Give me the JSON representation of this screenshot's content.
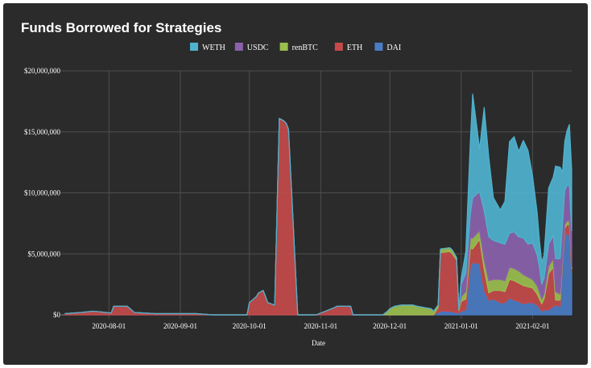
{
  "chart_data": {
    "type": "area",
    "stacked": true,
    "title": "Funds Borrowed for Strategies",
    "xlabel": "Date",
    "ylabel": "",
    "ylim": [
      0,
      20000000
    ],
    "yticks": [
      {
        "value": 0,
        "label": "$0"
      },
      {
        "value": 5000000,
        "label": "$5,000,000"
      },
      {
        "value": 10000000,
        "label": "$10,000,000"
      },
      {
        "value": 15000000,
        "label": "$15,000,000"
      },
      {
        "value": 20000000,
        "label": "$20,000,000"
      }
    ],
    "xlim": [
      "2020-07-13",
      "2021-02-18"
    ],
    "xticks": [
      "2020-08-01",
      "2020-09-01",
      "2020-10-01",
      "2020-11-01",
      "2020-12-01",
      "2021-01-01",
      "2021-02-01"
    ],
    "legend_position": "top-center",
    "grid": true,
    "colors": {
      "WETH": "#4fb3cf",
      "USDC": "#8a62ac",
      "renBTC": "#9bbe4f",
      "ETH": "#c44a4a",
      "DAI": "#4a7cc4"
    },
    "x": [
      "2020-07-13",
      "2020-07-20",
      "2020-07-25",
      "2020-07-28",
      "2020-08-02",
      "2020-08-03",
      "2020-08-08",
      "2020-08-09",
      "2020-08-12",
      "2020-08-21",
      "2020-09-07",
      "2020-09-08",
      "2020-09-15",
      "2020-09-16",
      "2020-09-30",
      "2020-10-01",
      "2020-10-04",
      "2020-10-05",
      "2020-10-07",
      "2020-10-09",
      "2020-10-12",
      "2020-10-14",
      "2020-10-16",
      "2020-10-17",
      "2020-10-18",
      "2020-10-22",
      "2020-10-23",
      "2020-10-24",
      "2020-10-25",
      "2020-10-26",
      "2020-10-27",
      "2020-10-28",
      "2020-10-29",
      "2020-10-30",
      "2020-11-07",
      "2020-11-08",
      "2020-11-14",
      "2020-11-15",
      "2020-11-28",
      "2020-11-30",
      "2020-12-01",
      "2020-12-03",
      "2020-12-06",
      "2020-12-08",
      "2020-12-11",
      "2020-12-13",
      "2020-12-16",
      "2020-12-19",
      "2020-12-20",
      "2020-12-22",
      "2020-12-23",
      "2020-12-27",
      "2020-12-28",
      "2020-12-30",
      "2020-12-31",
      "2021-01-01",
      "2021-01-03",
      "2021-01-05",
      "2021-01-06",
      "2021-01-09",
      "2021-01-11",
      "2021-01-13",
      "2021-01-15",
      "2021-01-18",
      "2021-01-20",
      "2021-01-22",
      "2021-01-24",
      "2021-01-26",
      "2021-01-28",
      "2021-01-30",
      "2021-02-01",
      "2021-02-03",
      "2021-02-04",
      "2021-02-05",
      "2021-02-06",
      "2021-02-08",
      "2021-02-10",
      "2021-02-11",
      "2021-02-13",
      "2021-02-14",
      "2021-02-15",
      "2021-02-16",
      "2021-02-17",
      "2021-02-18"
    ],
    "series": [
      {
        "name": "DAI",
        "values": [
          0,
          0,
          0,
          0,
          0,
          0,
          0,
          0,
          0,
          0,
          0,
          0,
          0,
          0,
          0,
          0,
          0,
          0,
          0,
          0,
          0,
          0,
          0,
          0,
          0,
          0,
          0,
          0,
          0,
          0,
          0,
          0,
          0,
          0,
          0,
          0,
          0,
          0,
          0,
          0,
          0,
          0,
          0,
          0,
          0,
          0,
          0,
          0,
          0,
          200000,
          300000,
          300000,
          250000,
          200000,
          150000,
          300000,
          400000,
          4000000,
          4300000,
          4200000,
          2000000,
          1200000,
          1300000,
          1000000,
          1000000,
          1400000,
          1200000,
          1100000,
          900000,
          1000000,
          1000000,
          800000,
          600000,
          300000,
          400000,
          400000,
          700000,
          800000,
          700000,
          4000000,
          6500000,
          6700000,
          6500000,
          3500000
        ]
      },
      {
        "name": "ETH",
        "values": [
          100000,
          200000,
          300000,
          250000,
          150000,
          700000,
          700000,
          700000,
          200000,
          100000,
          100000,
          100000,
          0,
          0,
          0,
          1000000,
          1500000,
          1800000,
          2000000,
          1000000,
          800000,
          16100000,
          15900000,
          15700000,
          15200000,
          0,
          0,
          0,
          0,
          0,
          0,
          0,
          0,
          0,
          600000,
          700000,
          700000,
          0,
          0,
          0,
          0,
          0,
          0,
          0,
          0,
          0,
          0,
          0,
          0,
          400000,
          4800000,
          4900000,
          4800000,
          4300000,
          200000,
          800000,
          900000,
          1500000,
          1100000,
          2000000,
          1700000,
          600000,
          700000,
          1000000,
          900000,
          1500000,
          1600000,
          1500000,
          1500000,
          1300000,
          1200000,
          900000,
          700000,
          600000,
          900000,
          3000000,
          3200000,
          400000,
          500000,
          200000,
          600000,
          700000,
          900000,
          300000
        ]
      },
      {
        "name": "renBTC",
        "values": [
          0,
          0,
          0,
          0,
          0,
          0,
          0,
          0,
          0,
          0,
          0,
          0,
          0,
          0,
          0,
          0,
          0,
          0,
          0,
          0,
          0,
          0,
          0,
          0,
          0,
          0,
          0,
          0,
          0,
          0,
          0,
          0,
          0,
          0,
          0,
          0,
          0,
          0,
          0,
          300000,
          500000,
          700000,
          800000,
          800000,
          800000,
          700000,
          600000,
          500000,
          300000,
          200000,
          300000,
          300000,
          300000,
          200000,
          100000,
          400000,
          600000,
          800000,
          900000,
          700000,
          800000,
          1000000,
          900000,
          900000,
          900000,
          1000000,
          1000000,
          1000000,
          900000,
          800000,
          700000,
          700000,
          600000,
          400000,
          400000,
          600000,
          700000,
          700000,
          500000,
          300000,
          300000,
          300000,
          300000,
          100000
        ]
      },
      {
        "name": "USDC",
        "values": [
          0,
          0,
          0,
          0,
          0,
          0,
          0,
          0,
          0,
          0,
          0,
          0,
          0,
          0,
          0,
          0,
          0,
          0,
          0,
          0,
          0,
          0,
          0,
          0,
          0,
          0,
          0,
          0,
          0,
          0,
          0,
          0,
          0,
          0,
          0,
          0,
          0,
          0,
          0,
          0,
          0,
          0,
          0,
          0,
          0,
          0,
          0,
          0,
          0,
          0,
          0,
          0,
          0,
          0,
          0,
          1000000,
          1500000,
          2000000,
          3300000,
          3200000,
          4000000,
          3600000,
          3200000,
          3000000,
          3000000,
          2800000,
          3000000,
          2800000,
          3000000,
          2700000,
          3000000,
          2500000,
          2000000,
          1200000,
          1300000,
          1800000,
          1900000,
          2700000,
          2900000,
          2900000,
          2800000,
          2900000,
          2900000,
          3000000
        ]
      },
      {
        "name": "WETH",
        "values": [
          0,
          0,
          0,
          0,
          0,
          0,
          0,
          0,
          0,
          0,
          0,
          0,
          0,
          0,
          0,
          0,
          0,
          0,
          0,
          0,
          0,
          0,
          0,
          0,
          0,
          0,
          0,
          0,
          0,
          0,
          0,
          0,
          0,
          0,
          0,
          0,
          0,
          0,
          0,
          0,
          0,
          0,
          0,
          0,
          0,
          0,
          0,
          0,
          0,
          0,
          0,
          0,
          0,
          0,
          0,
          500000,
          1800000,
          6000000,
          8500000,
          3500000,
          8500000,
          6500000,
          3500000,
          2700000,
          3500000,
          7500000,
          7800000,
          7000000,
          8000000,
          7700000,
          5500000,
          3500000,
          2200000,
          1800000,
          1900000,
          4600000,
          4800000,
          7600000,
          7500000,
          4300000,
          4000000,
          4500000,
          5000000,
          5000000
        ]
      }
    ]
  }
}
